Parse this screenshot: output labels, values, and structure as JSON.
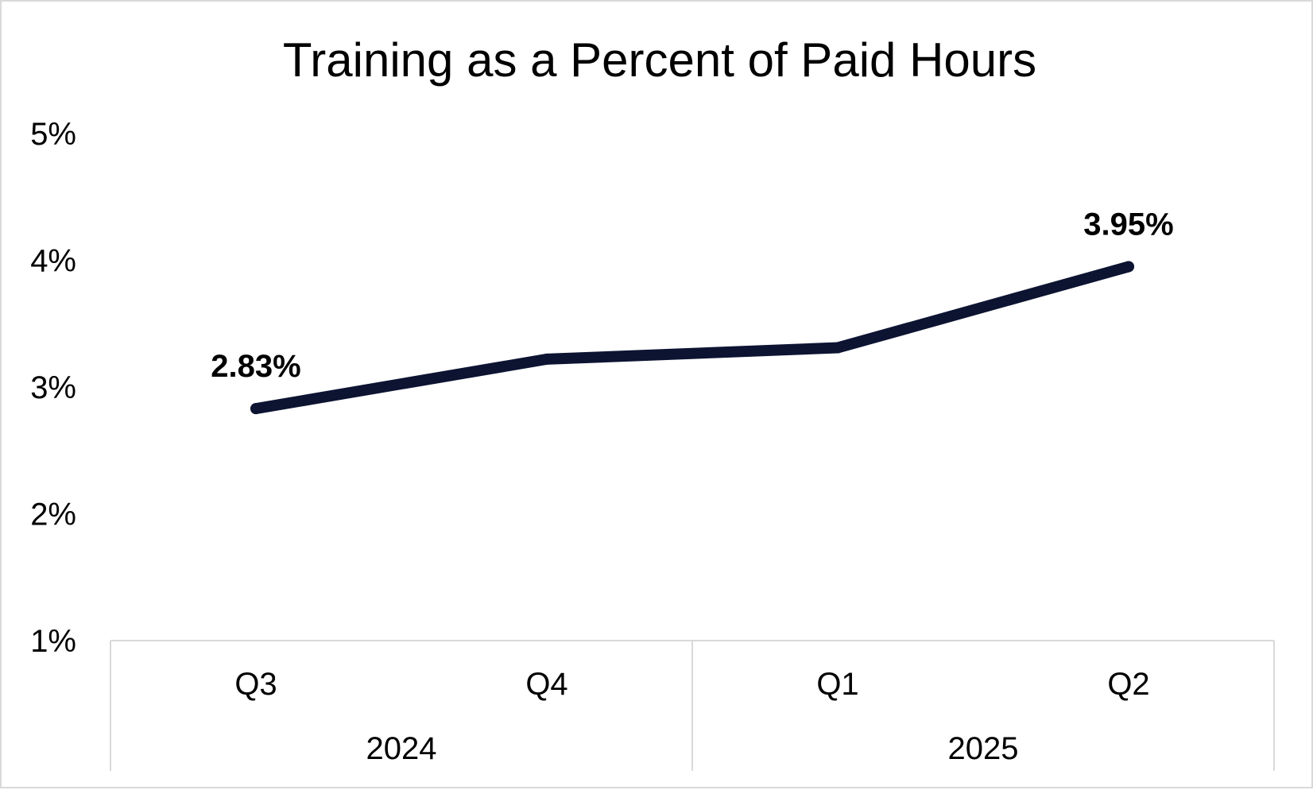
{
  "chart_data": {
    "type": "line",
    "title": "Training as a Percent of Paid Hours",
    "xlabel": "",
    "ylabel": "",
    "ylim": [
      1,
      5
    ],
    "yticks": [
      "5%",
      "4%",
      "3%",
      "2%",
      "1%"
    ],
    "grid": false,
    "legend": "none",
    "categories": [
      "Q3",
      "Q4",
      "Q1",
      "Q2"
    ],
    "groups": [
      {
        "label": "2024",
        "categories": [
          "Q3",
          "Q4"
        ]
      },
      {
        "label": "2025",
        "categories": [
          "Q1",
          "Q2"
        ]
      }
    ],
    "series": [
      {
        "values": [
          2.83,
          3.22,
          3.31,
          3.95
        ],
        "color": "#0d1432"
      }
    ],
    "data_labels": [
      {
        "index": 0,
        "text": "2.83%"
      },
      {
        "index": 3,
        "text": "3.95%"
      }
    ]
  },
  "colors": {
    "line": "#0d1432",
    "axis": "#d9d9d9",
    "text": "#000000"
  }
}
